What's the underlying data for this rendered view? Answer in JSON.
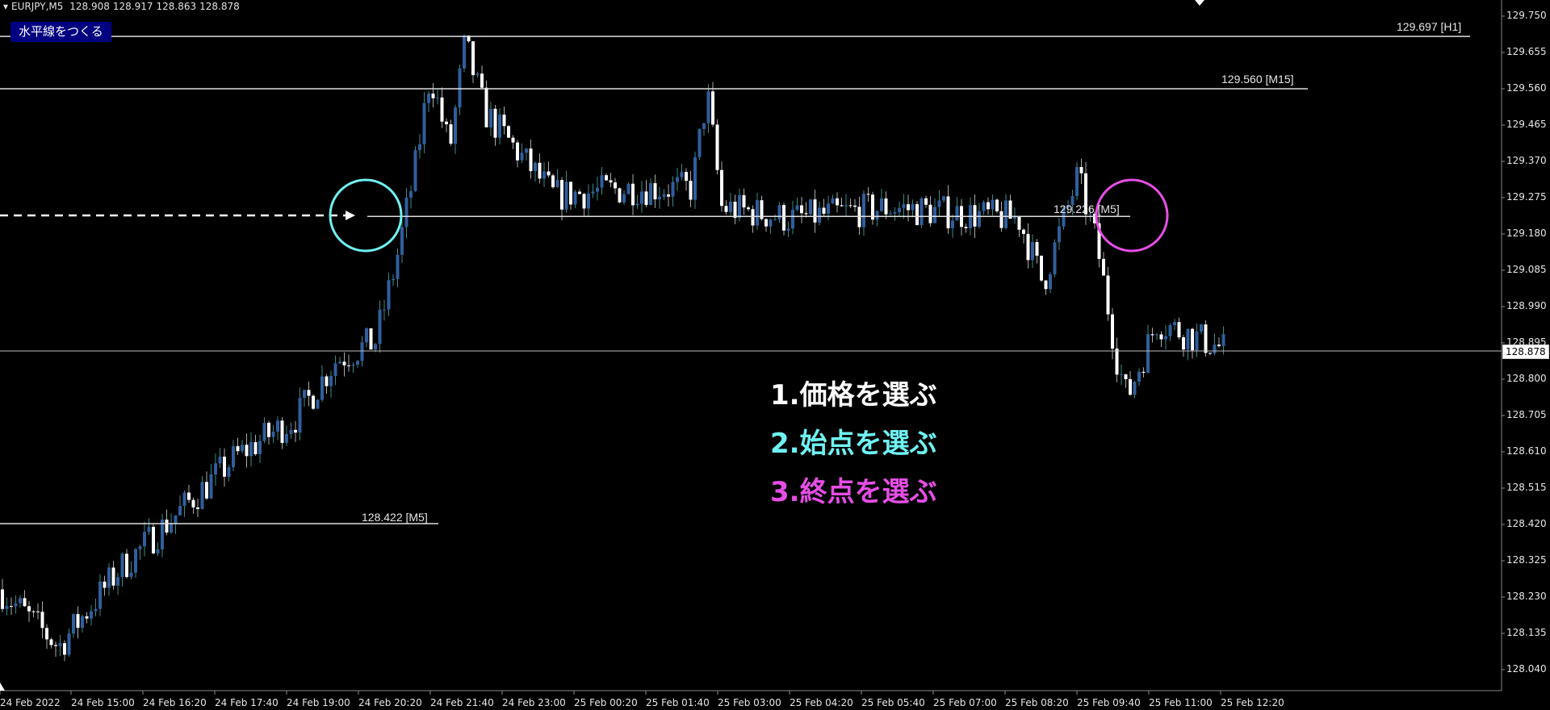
{
  "header": {
    "symbol": "EURJPY,M5",
    "open": "128.908",
    "high": "128.917",
    "low": "128.863",
    "close": "128.878"
  },
  "toolbar": {
    "create_hline_label": "水平線をつくる"
  },
  "price_axis": {
    "ticks": [
      "129.750",
      "129.655",
      "129.560",
      "129.465",
      "129.370",
      "129.275",
      "129.180",
      "129.085",
      "128.990",
      "128.895",
      "128.800",
      "128.705",
      "128.610",
      "128.515",
      "128.420",
      "128.325",
      "128.230",
      "128.135",
      "128.040"
    ],
    "current_price": "128.878"
  },
  "time_axis": {
    "ticks": [
      "24 Feb 2022",
      "24 Feb 15:00",
      "24 Feb 16:20",
      "24 Feb 17:40",
      "24 Feb 19:00",
      "24 Feb 20:20",
      "24 Feb 21:40",
      "24 Feb 23:00",
      "25 Feb 00:20",
      "25 Feb 01:40",
      "25 Feb 03:00",
      "25 Feb 04:20",
      "25 Feb 05:40",
      "25 Feb 07:00",
      "25 Feb 08:20",
      "25 Feb 09:40",
      "25 Feb 11:00",
      "25 Feb 12:20"
    ]
  },
  "lines": [
    {
      "label": "129.697 [H1]",
      "price": 129.697
    },
    {
      "label": "129.560 [M15]",
      "price": 129.56
    },
    {
      "label": "129.226 [M5]",
      "price": 129.226
    },
    {
      "label": "128.422 [M5]",
      "price": 128.422
    }
  ],
  "notes": [
    {
      "text": "1.価格を選ぶ",
      "color": "#ffffff"
    },
    {
      "text": "2.始点を選ぶ",
      "color": "#6ff2f2"
    },
    {
      "text": "3.終点を選ぶ",
      "color": "#e64ee6"
    }
  ],
  "colors": {
    "bull": "#2f5f9e",
    "bear": "#ffffff",
    "start_circle": "#6ff2f2",
    "end_circle": "#e64ee6",
    "button_bg": "#000080"
  },
  "chart_data": {
    "type": "candlestick",
    "symbol": "EURJPY",
    "timeframe": "M5",
    "ylim": [
      128.04,
      129.75
    ],
    "price_path": [
      128.25,
      128.1,
      128.3,
      128.45,
      128.6,
      128.7,
      128.85,
      128.9,
      129.1,
      129.35,
      129.6,
      129.4,
      129.68,
      129.5,
      129.28,
      129.3,
      129.3,
      129.55,
      129.25,
      129.22,
      129.25,
      129.22,
      129.05,
      129.33,
      129.15,
      128.85,
      128.75,
      128.95,
      128.88
    ]
  }
}
